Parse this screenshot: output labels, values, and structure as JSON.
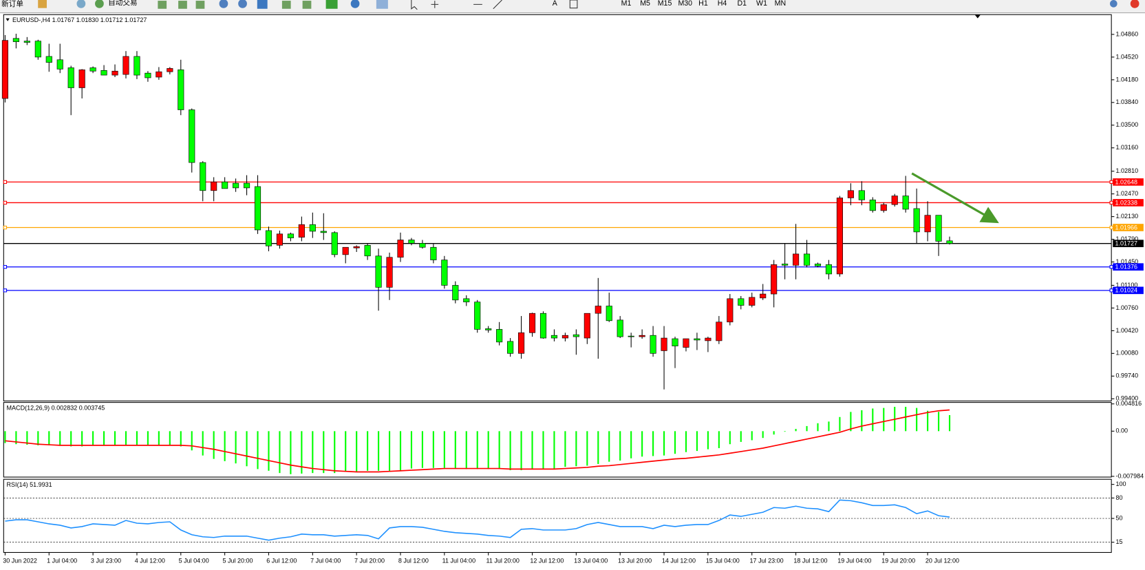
{
  "toolbar": {
    "items": [
      "新订单",
      "自动交易",
      "M1",
      "M5",
      "M15",
      "M30",
      "H1",
      "H4",
      "D1",
      "W1",
      "MN"
    ]
  },
  "chart_data": [
    {
      "type": "candlestick",
      "title": "EURUSD-,H4 1.01767 1.01830 1.01712 1.01727",
      "categories": [
        "30 Jun 2022",
        null,
        null,
        null,
        "1 Jul 04:00",
        null,
        null,
        null,
        "3 Jul 23:00",
        null,
        null,
        null,
        "4 Jul 12:00",
        null,
        null,
        null,
        "5 Jul 04:00",
        null,
        null,
        null,
        "5 Jul 20:00",
        null,
        null,
        null,
        "6 Jul 12:00",
        null,
        null,
        null,
        "7 Jul 04:00",
        null,
        null,
        null,
        "7 Jul 20:00",
        null,
        null,
        null,
        "8 Jul 12:00",
        null,
        null,
        null,
        "11 Jul 04:00",
        null,
        null,
        null,
        "11 Jul 20:00",
        null,
        null,
        null,
        "12 Jul 12:00",
        null,
        null,
        null,
        "13 Jul 04:00",
        null,
        null,
        null,
        "13 Jul 20:00",
        null,
        null,
        null,
        "14 Jul 12:00",
        null,
        null,
        null,
        "15 Jul 04:00",
        null,
        null,
        null,
        "17 Jul 23:00",
        null,
        null,
        null,
        "18 Jul 12:00",
        null,
        null,
        null,
        "19 Jul 04:00",
        null,
        null,
        null,
        "19 Jul 20:00",
        null,
        null,
        null,
        "20 Jul 12:00",
        null,
        null
      ],
      "open": [
        1.039,
        1.048,
        1.0476,
        1.0476,
        1.0453,
        1.0448,
        1.0436,
        1.0406,
        1.0436,
        1.0432,
        1.0425,
        1.0426,
        1.0453,
        1.0428,
        1.0422,
        1.043,
        1.0433,
        1.0373,
        1.0294,
        1.0252,
        1.0265,
        1.0263,
        1.0263,
        1.0258,
        1.0192,
        1.017,
        1.0187,
        1.0182,
        1.0201,
        1.0191,
        1.0189,
        1.0156,
        1.0166,
        1.017,
        1.0154,
        1.0107,
        1.0152,
        1.0178,
        1.0173,
        1.0167,
        1.0148,
        1.011,
        1.009,
        1.0085,
        1.0045,
        1.0044,
        1.0026,
        1.0008,
        1.0039,
        1.0068,
        1.0035,
        1.0031,
        1.0036,
        1.0031,
        1.0068,
        1.0079,
        1.0058,
        1.0034,
        1.0033,
        1.0035,
        1.0012,
        1.003,
        1.0017,
        1.003,
        1.0027,
        1.0027,
        1.0055,
        1.009,
        1.008,
        1.0091,
        1.0097,
        1.0142,
        1.014,
        1.0157,
        1.0142,
        1.0141,
        1.0127,
        1.0241,
        1.0252,
        1.0238,
        1.0222,
        1.0231,
        1.0244,
        1.0225,
        1.019,
        1.0215,
        1.01767
      ],
      "high": [
        1.0485,
        1.0487,
        1.0482,
        1.0478,
        1.0472,
        1.0472,
        1.0439,
        1.0434,
        1.0438,
        1.044,
        1.0441,
        1.0461,
        1.0461,
        1.0431,
        1.0437,
        1.0437,
        1.0448,
        1.0375,
        1.0296,
        1.0272,
        1.0272,
        1.027,
        1.0275,
        1.0275,
        1.0198,
        1.0192,
        1.0189,
        1.0213,
        1.0219,
        1.0218,
        1.0191,
        1.0167,
        1.017,
        1.0173,
        1.0165,
        1.0159,
        1.0189,
        1.0181,
        1.0178,
        1.0172,
        1.0154,
        1.0116,
        1.0095,
        1.0088,
        1.0049,
        1.0055,
        1.0031,
        1.0064,
        1.0069,
        1.0071,
        1.0044,
        1.0039,
        1.0044,
        1.0068,
        1.0121,
        1.0099,
        1.0064,
        1.0039,
        1.0044,
        1.0049,
        1.0049,
        1.0033,
        1.003,
        1.0039,
        1.0033,
        1.0064,
        1.0097,
        1.0094,
        1.0099,
        1.0112,
        1.0148,
        1.0173,
        1.0202,
        1.0178,
        1.0144,
        1.0148,
        1.0244,
        1.0263,
        1.0266,
        1.0242,
        1.0234,
        1.0247,
        1.0274,
        1.0255,
        1.0236,
        1.0215,
        1.0183
      ],
      "low": [
        1.0384,
        1.0465,
        1.047,
        1.0448,
        1.043,
        1.0428,
        1.0365,
        1.039,
        1.0428,
        1.0425,
        1.0422,
        1.042,
        1.0419,
        1.0415,
        1.0418,
        1.0426,
        1.0365,
        1.0279,
        1.0236,
        1.0236,
        1.0255,
        1.025,
        1.0245,
        1.0187,
        1.0161,
        1.0165,
        1.0176,
        1.0176,
        1.0181,
        1.0178,
        1.0152,
        1.0143,
        1.016,
        1.0148,
        1.0072,
        1.0088,
        1.0145,
        1.017,
        1.0165,
        1.0143,
        1.0105,
        1.0083,
        1.0079,
        1.0039,
        1.0039,
        1.002,
        1.0003,
        1.0,
        1.0033,
        1.003,
        1.0026,
        1.0026,
        1.0006,
        1.0022,
        1.0,
        1.0055,
        1.0031,
        1.0017,
        1.003,
        1.0003,
        0.9954,
        0.9986,
        1.0011,
        1.0013,
        1.001,
        1.0022,
        1.005,
        1.0074,
        1.0077,
        1.0088,
        1.0077,
        1.0119,
        1.0119,
        1.0137,
        1.0137,
        1.0119,
        1.0123,
        1.023,
        1.023,
        1.0219,
        1.0219,
        1.0228,
        1.0219,
        1.0173,
        1.0176,
        1.0154,
        1.01712
      ],
      "close": [
        1.0477,
        1.0475,
        1.0474,
        1.0452,
        1.0444,
        1.0434,
        1.0406,
        1.0433,
        1.0431,
        1.0425,
        1.0431,
        1.0453,
        1.0425,
        1.0421,
        1.043,
        1.0435,
        1.0373,
        1.0294,
        1.0252,
        1.0265,
        1.0255,
        1.0256,
        1.0256,
        1.0193,
        1.0169,
        1.0187,
        1.0181,
        1.0201,
        1.0191,
        1.0189,
        1.0156,
        1.0167,
        1.0168,
        1.0154,
        1.0107,
        1.0152,
        1.0178,
        1.0173,
        1.0167,
        1.0148,
        1.011,
        1.0088,
        1.0085,
        1.0044,
        1.0043,
        1.0025,
        1.0008,
        1.0039,
        1.0068,
        1.0031,
        1.0031,
        1.0035,
        1.0033,
        1.0068,
        1.0079,
        1.0057,
        1.0033,
        1.0033,
        1.0035,
        1.0008,
        1.0031,
        1.0019,
        1.003,
        1.0028,
        1.0031,
        1.0055,
        1.009,
        1.008,
        1.0092,
        1.0097,
        1.0141,
        1.014,
        1.0157,
        1.014,
        1.0139,
        1.0127,
        1.0241,
        1.0252,
        1.0238,
        1.0222,
        1.0231,
        1.0244,
        1.0224,
        1.019,
        1.0215,
        1.0176,
        1.01727
      ],
      "up_color": "#ff0000",
      "down_color": "#00ff00",
      "ylim": [
        0.99367,
        1.05156
      ],
      "yticks": [
        {
          "value": 1.0486,
          "label": "1.04860"
        },
        {
          "value": 1.0452,
          "label": "1.04520"
        },
        {
          "value": 1.0418,
          "label": "1.04180"
        },
        {
          "value": 1.0384,
          "label": "1.03840"
        },
        {
          "value": 1.035,
          "label": "1.03500"
        },
        {
          "value": 1.0316,
          "label": "1.03160"
        },
        {
          "value": 1.0281,
          "label": "1.02810"
        },
        {
          "value": 1.0247,
          "label": "1.02470"
        },
        {
          "value": 1.0213,
          "label": "1.02130"
        },
        {
          "value": 1.0179,
          "label": "1.01790"
        },
        {
          "value": 1.0145,
          "label": "1.01450"
        },
        {
          "value": 1.011,
          "label": "1.01100"
        },
        {
          "value": 1.0076,
          "label": "1.00760"
        },
        {
          "value": 1.0042,
          "label": "1.00420"
        },
        {
          "value": 1.0008,
          "label": "1.00080"
        },
        {
          "value": 0.9974,
          "label": "0.99740"
        },
        {
          "value": 0.994,
          "label": "0.99400"
        }
      ],
      "hlines": [
        {
          "value": 1.02648,
          "color": "#ff0000"
        },
        {
          "value": 1.02338,
          "color": "#ff0000"
        },
        {
          "value": 1.01966,
          "color": "#ffa500"
        },
        {
          "value": 1.01727,
          "color": "#000000"
        },
        {
          "value": 1.01376,
          "color": "#0000ff"
        },
        {
          "value": 1.01024,
          "color": "#0000ff"
        }
      ]
    },
    {
      "type": "macd",
      "title": "MACD(12,26,9) 0.002832 0.003745",
      "series": [
        {
          "color": "#00ff00",
          "values": [
            -0.0021,
            -0.0023,
            -0.0024,
            -0.0025,
            -0.0025,
            -0.0026,
            -0.0027,
            -0.0027,
            -0.0026,
            -0.0026,
            -0.0026,
            -0.0025,
            -0.0025,
            -0.0025,
            -0.0025,
            -0.0025,
            -0.0027,
            -0.0034,
            -0.0043,
            -0.0049,
            -0.0053,
            -0.0057,
            -0.0062,
            -0.0067,
            -0.007,
            -0.0074,
            -0.0076,
            -0.0075,
            -0.0074,
            -0.0074,
            -0.0074,
            -0.0072,
            -0.0072,
            -0.007,
            -0.007,
            -0.007,
            -0.0069,
            -0.0066,
            -0.0065,
            -0.0065,
            -0.0065,
            -0.0066,
            -0.0067,
            -0.0067,
            -0.0067,
            -0.0067,
            -0.0069,
            -0.0069,
            -0.0067,
            -0.0066,
            -0.0066,
            -0.0063,
            -0.0062,
            -0.0061,
            -0.0058,
            -0.0054,
            -0.0052,
            -0.0048,
            -0.0045,
            -0.0044,
            -0.0043,
            -0.004,
            -0.0037,
            -0.0035,
            -0.0032,
            -0.003,
            -0.0023,
            -0.0019,
            -0.0016,
            -0.0012,
            -0.0006,
            -0.0001,
            0.0004,
            0.0009,
            0.0014,
            0.0017,
            0.0025,
            0.0034,
            0.0037,
            0.004,
            0.0041,
            0.0043,
            0.0043,
            0.0041,
            0.0036,
            0.0034,
            0.002832
          ]
        },
        {
          "color": "#ff0000",
          "values": [
            -0.0017,
            -0.0019,
            -0.0021,
            -0.0023,
            -0.0024,
            -0.0025,
            -0.0025,
            -0.0025,
            -0.0025,
            -0.0025,
            -0.0025,
            -0.0025,
            -0.0025,
            -0.0025,
            -0.0025,
            -0.0025,
            -0.0025,
            -0.0026,
            -0.0029,
            -0.0032,
            -0.0036,
            -0.004,
            -0.0044,
            -0.0048,
            -0.0052,
            -0.0056,
            -0.006,
            -0.0063,
            -0.0066,
            -0.0068,
            -0.007,
            -0.0071,
            -0.0072,
            -0.0072,
            -0.0072,
            -0.0071,
            -0.007,
            -0.0069,
            -0.0068,
            -0.0067,
            -0.0066,
            -0.0066,
            -0.0066,
            -0.0066,
            -0.0066,
            -0.0066,
            -0.0067,
            -0.0067,
            -0.0067,
            -0.0067,
            -0.0067,
            -0.0066,
            -0.0065,
            -0.0064,
            -0.0062,
            -0.0061,
            -0.0059,
            -0.0057,
            -0.0055,
            -0.0053,
            -0.0051,
            -0.0049,
            -0.0048,
            -0.0046,
            -0.0044,
            -0.0042,
            -0.0039,
            -0.0036,
            -0.0033,
            -0.003,
            -0.0026,
            -0.0022,
            -0.0018,
            -0.0014,
            -0.001,
            -0.0006,
            -0.0002,
            0.0004,
            0.0009,
            0.0013,
            0.0017,
            0.0021,
            0.0025,
            0.0029,
            0.0033,
            0.0036,
            0.003745
          ]
        }
      ],
      "ylim": [
        -0.007984,
        0.004816
      ],
      "yticks": [
        0.004816,
        {
          "value": 0,
          "label": "0.00"
        },
        -0.007984
      ]
    },
    {
      "type": "rsi",
      "title": "RSI(14) 51.9931",
      "color": "#1e90ff",
      "values": [
        46,
        48,
        48,
        45,
        42,
        40,
        36,
        38,
        42,
        41,
        40,
        47,
        43,
        42,
        44,
        45,
        33,
        26,
        23,
        22,
        24,
        24,
        24,
        21,
        18,
        21,
        23,
        27,
        26,
        26,
        24,
        25,
        26,
        25,
        20,
        36,
        38,
        38,
        37,
        34,
        31,
        29,
        28,
        27,
        25,
        24,
        22,
        34,
        35,
        33,
        33,
        33,
        35,
        41,
        44,
        41,
        38,
        38,
        38,
        35,
        40,
        38,
        40,
        41,
        41,
        47,
        55,
        53,
        56,
        59,
        66,
        65,
        68,
        65,
        64,
        60,
        77,
        76,
        73,
        69,
        69,
        70,
        66,
        57,
        61,
        54,
        51.9931
      ],
      "ylim": [
        0,
        100
      ],
      "yticks": [
        100,
        80,
        50,
        15
      ],
      "levels": [
        80,
        50,
        15
      ]
    }
  ]
}
